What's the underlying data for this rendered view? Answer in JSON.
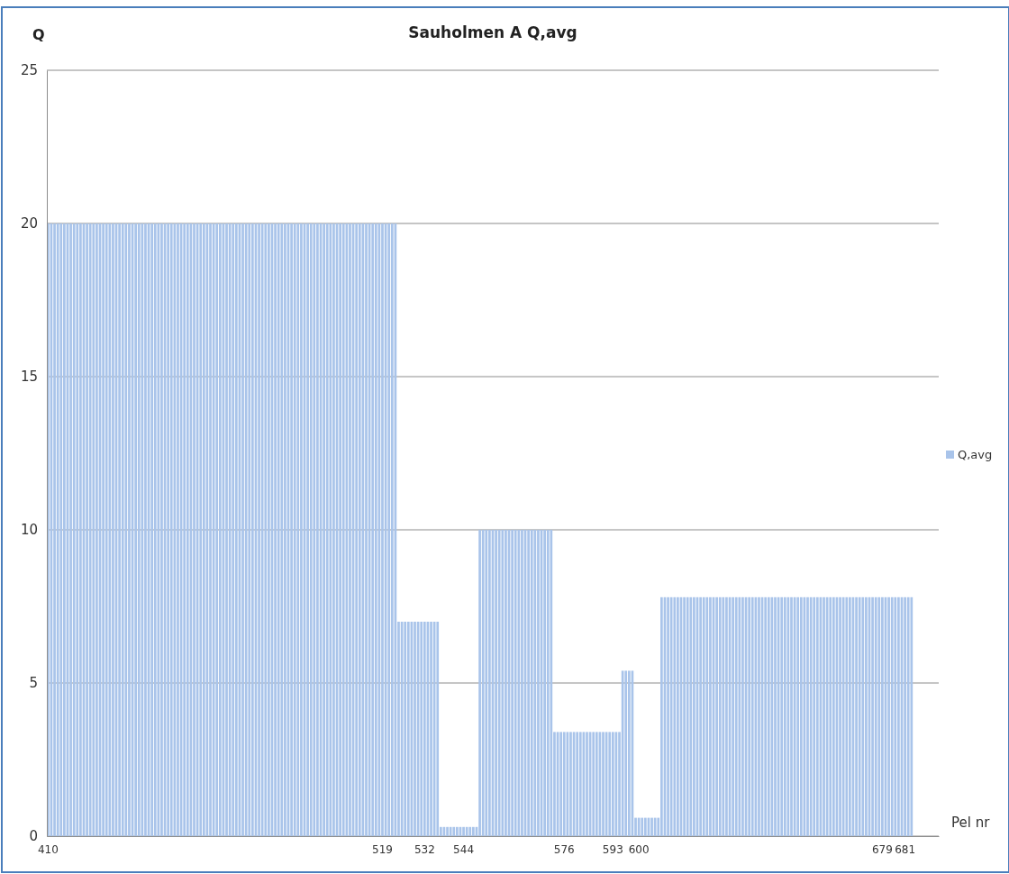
{
  "chart_data": {
    "type": "bar",
    "title": "Sauholmen A Q,avg",
    "xlabel": "Pel nr",
    "ylabel": "Q",
    "categories": [
      "410",
      null,
      null,
      null,
      null,
      null,
      null,
      null,
      null,
      null,
      null,
      null,
      null,
      null,
      null,
      null,
      null,
      null,
      null,
      null,
      null,
      null,
      null,
      null,
      null,
      null,
      null,
      null,
      null,
      null,
      null,
      null,
      null,
      null,
      null,
      null,
      null,
      null,
      null,
      null,
      null,
      null,
      null,
      null,
      null,
      null,
      null,
      null,
      null,
      null,
      null,
      null,
      null,
      null,
      null,
      null,
      null,
      null,
      null,
      null,
      null,
      null,
      null,
      null,
      null,
      null,
      null,
      null,
      null,
      null,
      null,
      null,
      null,
      null,
      null,
      null,
      null,
      null,
      null,
      null,
      null,
      null,
      null,
      null,
      null,
      null,
      null,
      null,
      null,
      null,
      null,
      null,
      null,
      null,
      null,
      null,
      null,
      null,
      null,
      null,
      null,
      null,
      null,
      "519",
      null,
      null,
      null,
      null,
      null,
      null,
      null,
      null,
      null,
      null,
      null,
      null,
      "532",
      null,
      null,
      null,
      null,
      null,
      null,
      null,
      null,
      null,
      null,
      null,
      "544",
      null,
      null,
      null,
      null,
      null,
      null,
      null,
      null,
      null,
      null,
      null,
      null,
      null,
      null,
      null,
      null,
      null,
      null,
      null,
      null,
      null,
      null,
      null,
      null,
      null,
      null,
      null,
      null,
      null,
      null,
      "576",
      null,
      null,
      null,
      null,
      null,
      null,
      null,
      null,
      null,
      null,
      null,
      null,
      null,
      null,
      "593",
      null,
      null,
      null,
      null,
      null,
      null,
      null,
      "600",
      null,
      null,
      null,
      null,
      null,
      null,
      null,
      null,
      null,
      null,
      null,
      null,
      null,
      null,
      null,
      null,
      null,
      null,
      null,
      null,
      null,
      null,
      null,
      null,
      null,
      null,
      null,
      null,
      null,
      null,
      null,
      null,
      null,
      null,
      null,
      null,
      null,
      null,
      null,
      null,
      null,
      null,
      null,
      null,
      null,
      null,
      null,
      null,
      null,
      null,
      null,
      null,
      null,
      null,
      null,
      null,
      null,
      null,
      null,
      null,
      null,
      null,
      null,
      null,
      null,
      null,
      null,
      null,
      null,
      null,
      null,
      null,
      null,
      null,
      "679",
      null,
      null,
      null,
      null,
      null,
      null,
      "681",
      null,
      null,
      null,
      null,
      null,
      null,
      null,
      null,
      null,
      null
    ],
    "series": [
      {
        "name": "Q,avg",
        "color": "#a9c4ea",
        "values": [
          20,
          20,
          20,
          20,
          20,
          20,
          20,
          20,
          20,
          20,
          20,
          20,
          20,
          20,
          20,
          20,
          20,
          20,
          20,
          20,
          20,
          20,
          20,
          20,
          20,
          20,
          20,
          20,
          20,
          20,
          20,
          20,
          20,
          20,
          20,
          20,
          20,
          20,
          20,
          20,
          20,
          20,
          20,
          20,
          20,
          20,
          20,
          20,
          20,
          20,
          20,
          20,
          20,
          20,
          20,
          20,
          20,
          20,
          20,
          20,
          20,
          20,
          20,
          20,
          20,
          20,
          20,
          20,
          20,
          20,
          20,
          20,
          20,
          20,
          20,
          20,
          20,
          20,
          20,
          20,
          20,
          20,
          20,
          20,
          20,
          20,
          20,
          20,
          20,
          20,
          20,
          20,
          20,
          20,
          20,
          20,
          20,
          20,
          20,
          20,
          20,
          20,
          20,
          20,
          20,
          20,
          20,
          20,
          7,
          7,
          7,
          7,
          7,
          7,
          7,
          7,
          7,
          7,
          7,
          7,
          7,
          0.3,
          0.3,
          0.3,
          0.3,
          0.3,
          0.3,
          0.3,
          0.3,
          0.3,
          0.3,
          0.3,
          0.3,
          10,
          10,
          10,
          10,
          10,
          10,
          10,
          10,
          10,
          10,
          10,
          10,
          10,
          10,
          10,
          10,
          10,
          10,
          10,
          10,
          10,
          10,
          10,
          3.4,
          3.4,
          3.4,
          3.4,
          3.4,
          3.4,
          3.4,
          3.4,
          3.4,
          3.4,
          3.4,
          3.4,
          3.4,
          3.4,
          3.4,
          3.4,
          3.4,
          3.4,
          3.4,
          3.4,
          3.4,
          5.4,
          5.4,
          5.4,
          5.4,
          0.6,
          0.6,
          0.6,
          0.6,
          0.6,
          0.6,
          0.6,
          0.6,
          7.8,
          7.8,
          7.8,
          7.8,
          7.8,
          7.8,
          7.8,
          7.8,
          7.8,
          7.8,
          7.8,
          7.8,
          7.8,
          7.8,
          7.8,
          7.8,
          7.8,
          7.8,
          7.8,
          7.8,
          7.8,
          7.8,
          7.8,
          7.8,
          7.8,
          7.8,
          7.8,
          7.8,
          7.8,
          7.8,
          7.8,
          7.8,
          7.8,
          7.8,
          7.8,
          7.8,
          7.8,
          7.8,
          7.8,
          7.8,
          7.8,
          7.8,
          7.8,
          7.8,
          7.8,
          7.8,
          7.8,
          7.8,
          7.8,
          7.8,
          7.8,
          7.8,
          7.8,
          7.8,
          7.8,
          7.8,
          7.8,
          7.8,
          7.8,
          7.8,
          7.8,
          7.8,
          7.8,
          7.8,
          7.8,
          7.8,
          7.8,
          7.8,
          7.8,
          7.8,
          7.8,
          7.8,
          7.8,
          7.8,
          7.8,
          7.8,
          7.8,
          7.8,
          0,
          0,
          0,
          0,
          0,
          0,
          0,
          0
        ]
      }
    ],
    "ylim": [
      0,
      25
    ],
    "yticks": [
      0,
      5,
      10,
      15,
      20,
      25
    ],
    "grid": "y",
    "legend": "right"
  }
}
